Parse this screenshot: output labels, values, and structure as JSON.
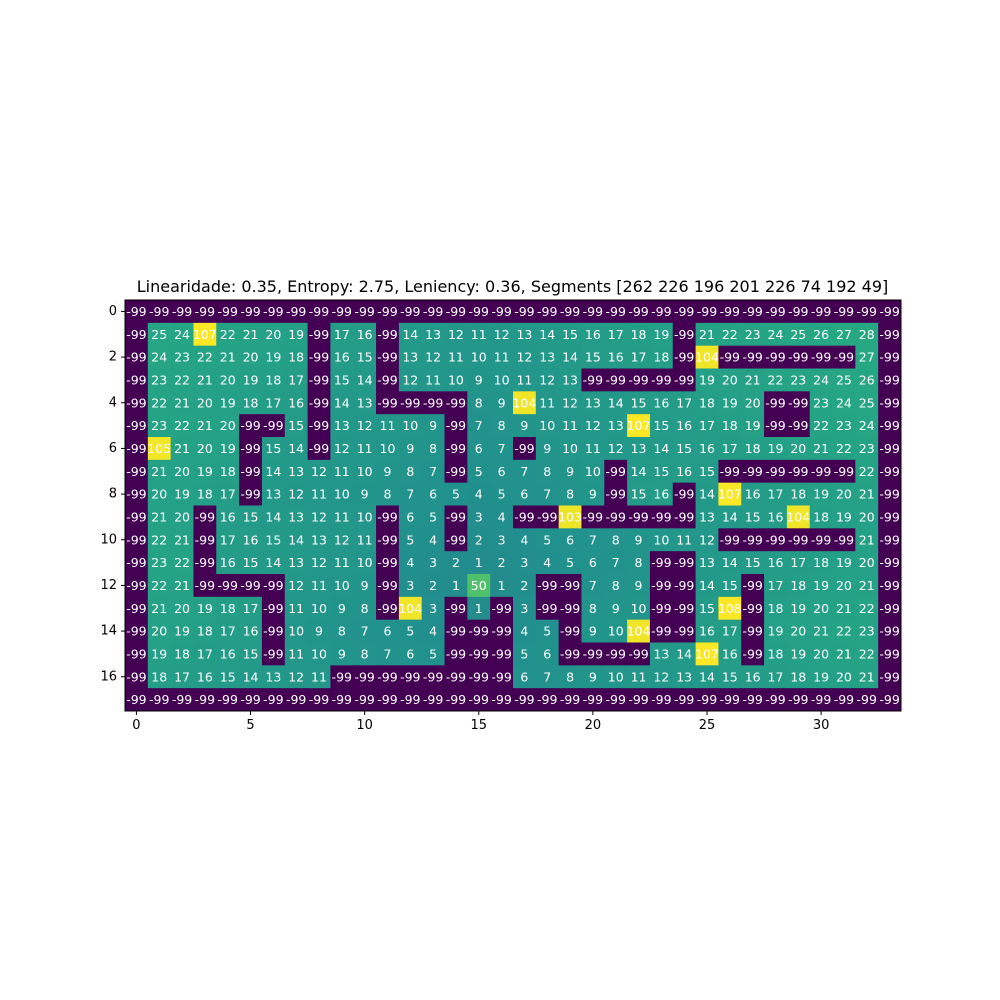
{
  "chart_data": {
    "type": "heatmap",
    "title": "Linearidade: 0.35, Entropy: 2.75, Leniency: 0.36, Segments [262 226 196 201 226  74 192  49]",
    "xlabel": "",
    "ylabel": "",
    "x_ticks": [
      "0",
      "5",
      "10",
      "15",
      "20",
      "25",
      "30"
    ],
    "y_ticks": [
      "0",
      "2",
      "4",
      "6",
      "8",
      "10",
      "12",
      "14",
      "16"
    ],
    "colormap": "viridis",
    "color_range": [
      -99,
      108
    ],
    "label_color": "#ffffff",
    "matrix": [
      [
        -99,
        -99,
        -99,
        -99,
        -99,
        -99,
        -99,
        -99,
        -99,
        -99,
        -99,
        -99,
        -99,
        -99,
        -99,
        -99,
        -99,
        -99,
        -99,
        -99,
        -99,
        -99,
        -99,
        -99,
        -99,
        -99,
        -99,
        -99,
        -99,
        -99,
        -99,
        -99,
        -99,
        -99
      ],
      [
        -99,
        25,
        24,
        107,
        22,
        21,
        20,
        19,
        -99,
        17,
        16,
        -99,
        14,
        13,
        12,
        11,
        12,
        13,
        14,
        15,
        16,
        17,
        18,
        19,
        -99,
        21,
        22,
        23,
        24,
        25,
        26,
        27,
        28,
        -99
      ],
      [
        -99,
        24,
        23,
        22,
        21,
        20,
        19,
        18,
        -99,
        16,
        15,
        -99,
        13,
        12,
        11,
        10,
        11,
        12,
        13,
        14,
        15,
        16,
        17,
        18,
        -99,
        104,
        -99,
        -99,
        -99,
        -99,
        -99,
        -99,
        27,
        -99
      ],
      [
        -99,
        23,
        22,
        21,
        20,
        19,
        18,
        17,
        -99,
        15,
        14,
        -99,
        12,
        11,
        10,
        9,
        10,
        11,
        12,
        13,
        -99,
        -99,
        -99,
        -99,
        -99,
        19,
        20,
        21,
        22,
        23,
        24,
        25,
        26,
        -99
      ],
      [
        -99,
        22,
        21,
        20,
        19,
        18,
        17,
        16,
        -99,
        14,
        13,
        -99,
        -99,
        -99,
        -99,
        8,
        9,
        104,
        11,
        12,
        13,
        14,
        15,
        16,
        17,
        18,
        19,
        20,
        -99,
        -99,
        23,
        24,
        25,
        -99
      ],
      [
        -99,
        23,
        22,
        21,
        20,
        -99,
        -99,
        15,
        -99,
        13,
        12,
        11,
        10,
        9,
        -99,
        7,
        8,
        9,
        10,
        11,
        12,
        13,
        107,
        15,
        16,
        17,
        18,
        19,
        -99,
        -99,
        22,
        23,
        24,
        -99
      ],
      [
        -99,
        105,
        21,
        20,
        19,
        -99,
        15,
        14,
        -99,
        12,
        11,
        10,
        9,
        8,
        -99,
        6,
        7,
        -99,
        9,
        10,
        11,
        12,
        13,
        14,
        15,
        16,
        17,
        18,
        19,
        20,
        21,
        22,
        23,
        -99
      ],
      [
        -99,
        21,
        20,
        19,
        18,
        -99,
        14,
        13,
        12,
        11,
        10,
        9,
        8,
        7,
        -99,
        5,
        6,
        7,
        8,
        9,
        10,
        -99,
        14,
        15,
        16,
        15,
        -99,
        -99,
        -99,
        -99,
        -99,
        -99,
        22,
        -99
      ],
      [
        -99,
        20,
        19,
        18,
        17,
        -99,
        13,
        12,
        11,
        10,
        9,
        8,
        7,
        6,
        5,
        4,
        5,
        6,
        7,
        8,
        9,
        -99,
        15,
        16,
        -99,
        14,
        107,
        16,
        17,
        18,
        19,
        20,
        21,
        -99
      ],
      [
        -99,
        21,
        20,
        -99,
        16,
        15,
        14,
        13,
        12,
        11,
        10,
        -99,
        6,
        5,
        -99,
        3,
        4,
        -99,
        -99,
        103,
        -99,
        -99,
        -99,
        -99,
        -99,
        13,
        14,
        15,
        16,
        104,
        18,
        19,
        20,
        -99
      ],
      [
        -99,
        22,
        21,
        -99,
        17,
        16,
        15,
        14,
        13,
        12,
        11,
        -99,
        5,
        4,
        -99,
        2,
        3,
        4,
        5,
        6,
        7,
        8,
        9,
        10,
        11,
        12,
        -99,
        -99,
        -99,
        -99,
        -99,
        -99,
        21,
        -99
      ],
      [
        -99,
        23,
        22,
        -99,
        16,
        15,
        14,
        13,
        12,
        11,
        10,
        -99,
        4,
        3,
        2,
        1,
        2,
        3,
        4,
        5,
        6,
        7,
        8,
        -99,
        -99,
        13,
        14,
        15,
        16,
        17,
        18,
        19,
        20,
        -99
      ],
      [
        -99,
        22,
        21,
        -99,
        -99,
        -99,
        -99,
        12,
        11,
        10,
        9,
        -99,
        3,
        2,
        1,
        50,
        1,
        2,
        -99,
        -99,
        7,
        8,
        9,
        -99,
        -99,
        14,
        15,
        -99,
        17,
        18,
        19,
        20,
        21,
        -99
      ],
      [
        -99,
        21,
        20,
        19,
        18,
        17,
        -99,
        11,
        10,
        9,
        8,
        -99,
        104,
        3,
        -99,
        1,
        -99,
        3,
        -99,
        -99,
        8,
        9,
        10,
        -99,
        -99,
        15,
        108,
        -99,
        18,
        19,
        20,
        21,
        22,
        -99
      ],
      [
        -99,
        20,
        19,
        18,
        17,
        16,
        -99,
        10,
        9,
        8,
        7,
        6,
        5,
        4,
        -99,
        -99,
        -99,
        4,
        5,
        -99,
        9,
        10,
        104,
        -99,
        -99,
        16,
        17,
        -99,
        19,
        20,
        21,
        22,
        23,
        -99
      ],
      [
        -99,
        19,
        18,
        17,
        16,
        15,
        -99,
        11,
        10,
        9,
        8,
        7,
        6,
        5,
        -99,
        -99,
        -99,
        5,
        6,
        -99,
        -99,
        -99,
        -99,
        13,
        14,
        107,
        16,
        -99,
        18,
        19,
        20,
        21,
        22,
        -99
      ],
      [
        -99,
        18,
        17,
        16,
        15,
        14,
        13,
        12,
        11,
        -99,
        -99,
        -99,
        -99,
        -99,
        -99,
        -99,
        -99,
        6,
        7,
        8,
        9,
        10,
        11,
        12,
        13,
        14,
        15,
        16,
        17,
        18,
        19,
        20,
        21,
        -99
      ],
      [
        -99,
        -99,
        -99,
        -99,
        -99,
        -99,
        -99,
        -99,
        -99,
        -99,
        -99,
        -99,
        -99,
        -99,
        -99,
        -99,
        -99,
        -99,
        -99,
        -99,
        -99,
        -99,
        -99,
        -99,
        -99,
        -99,
        -99,
        -99,
        -99,
        -99,
        -99,
        -99,
        -99,
        -99
      ]
    ]
  }
}
